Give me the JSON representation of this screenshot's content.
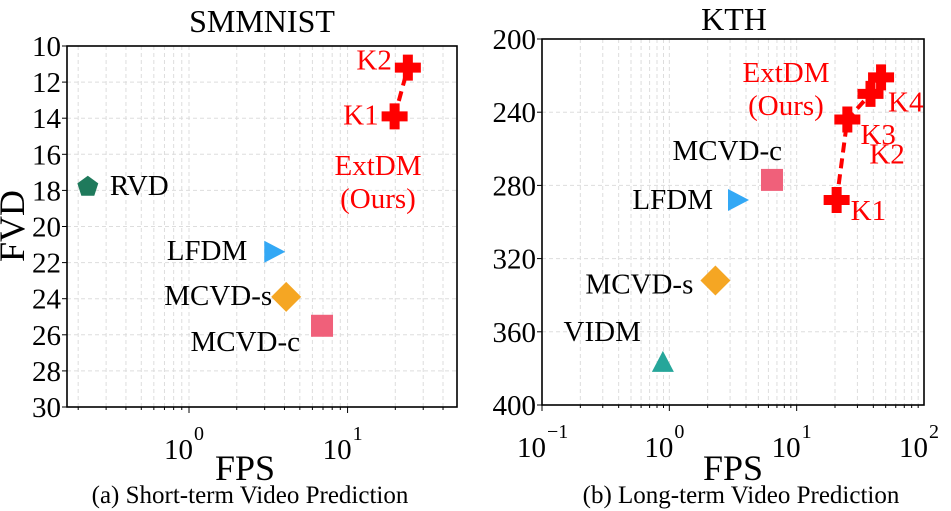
{
  "chart_data": [
    {
      "type": "scatter",
      "title": "SMMNIST",
      "xlabel": "FPS",
      "ylabel": "FVD",
      "caption": "(a) Short-term Video Prediction",
      "xscale": "log",
      "xlim": [
        0.17,
        49
      ],
      "ylim": [
        30,
        10
      ],
      "y_inverted": true,
      "grid": true,
      "xticks": [
        {
          "base": "10",
          "exp": "0",
          "value": 1
        },
        {
          "base": "10",
          "exp": "1",
          "value": 10
        }
      ],
      "yticks": [
        "10",
        "12",
        "14",
        "16",
        "18",
        "20",
        "22",
        "24",
        "26",
        "28",
        "30"
      ],
      "points": [
        {
          "label": "RVD",
          "x": 0.23,
          "y": 17.8,
          "marker": "pentagon",
          "color": "#1f7a5c",
          "text_color": "#000"
        },
        {
          "label": "LFDM",
          "x": 3.4,
          "y": 21.4,
          "marker": "triangle-right",
          "color": "#33a8f5",
          "text_color": "#000"
        },
        {
          "label": "MCVD-s",
          "x": 4.1,
          "y": 23.9,
          "marker": "diamond",
          "color": "#f5a623",
          "text_color": "#000"
        },
        {
          "label": "MCVD-c",
          "x": 6.9,
          "y": 25.5,
          "marker": "square",
          "color": "#f0607a",
          "text_color": "#000"
        },
        {
          "label": "K1",
          "x": 19.8,
          "y": 13.9,
          "marker": "plus",
          "color": "#ff0000",
          "text_color": "#ff0000"
        },
        {
          "label": "K2",
          "x": 24,
          "y": 11.2,
          "marker": "plus",
          "color": "#ff0000",
          "text_color": "#ff0000"
        }
      ],
      "series_line": {
        "name": "ExtDM (Ours)",
        "name_line1": "ExtDM",
        "name_line2": "(Ours)",
        "points": [
          "K1",
          "K2"
        ],
        "color": "#ff0000"
      }
    },
    {
      "type": "scatter",
      "title": "KTH",
      "xlabel": "FPS",
      "ylabel": "",
      "caption": "(b) Long-term Video Prediction",
      "xscale": "log",
      "xlim": [
        0.1,
        100
      ],
      "ylim": [
        400,
        200
      ],
      "y_inverted": true,
      "grid": true,
      "xticks": [
        {
          "base": "10",
          "exp": "−1",
          "value": 0.1
        },
        {
          "base": "10",
          "exp": "0",
          "value": 1
        },
        {
          "base": "10",
          "exp": "1",
          "value": 10
        },
        {
          "base": "10",
          "exp": "2",
          "value": 100
        }
      ],
      "yticks": [
        "200",
        "240",
        "280",
        "320",
        "360",
        "400"
      ],
      "points": [
        {
          "label": "VIDM",
          "x": 0.89,
          "y": 377,
          "marker": "triangle-up",
          "color": "#26a69a",
          "text_color": "#000"
        },
        {
          "label": "MCVD-s",
          "x": 2.3,
          "y": 332,
          "marker": "diamond",
          "color": "#f5a623",
          "text_color": "#000"
        },
        {
          "label": "LFDM",
          "x": 3.4,
          "y": 288,
          "marker": "triangle-right",
          "color": "#33a8f5",
          "text_color": "#000"
        },
        {
          "label": "MCVD-c",
          "x": 6.4,
          "y": 277,
          "marker": "square",
          "color": "#f0607a",
          "text_color": "#000"
        },
        {
          "label": "K1",
          "x": 20.6,
          "y": 288,
          "marker": "plus",
          "color": "#ff0000",
          "text_color": "#ff0000"
        },
        {
          "label": "K2",
          "x": 25,
          "y": 244,
          "marker": "plus",
          "color": "#ff0000",
          "text_color": "#ff0000"
        },
        {
          "label": "K3",
          "x": 38,
          "y": 230,
          "marker": "plus",
          "color": "#ff0000",
          "text_color": "#ff0000"
        },
        {
          "label": "K4",
          "x": 46,
          "y": 221,
          "marker": "plus",
          "color": "#ff0000",
          "text_color": "#ff0000"
        }
      ],
      "series_line": {
        "name": "ExtDM (Ours)",
        "name_line1": "ExtDM",
        "name_line2": "(Ours)",
        "points": [
          "K1",
          "K2",
          "K3",
          "K4"
        ],
        "color": "#ff0000"
      }
    }
  ]
}
